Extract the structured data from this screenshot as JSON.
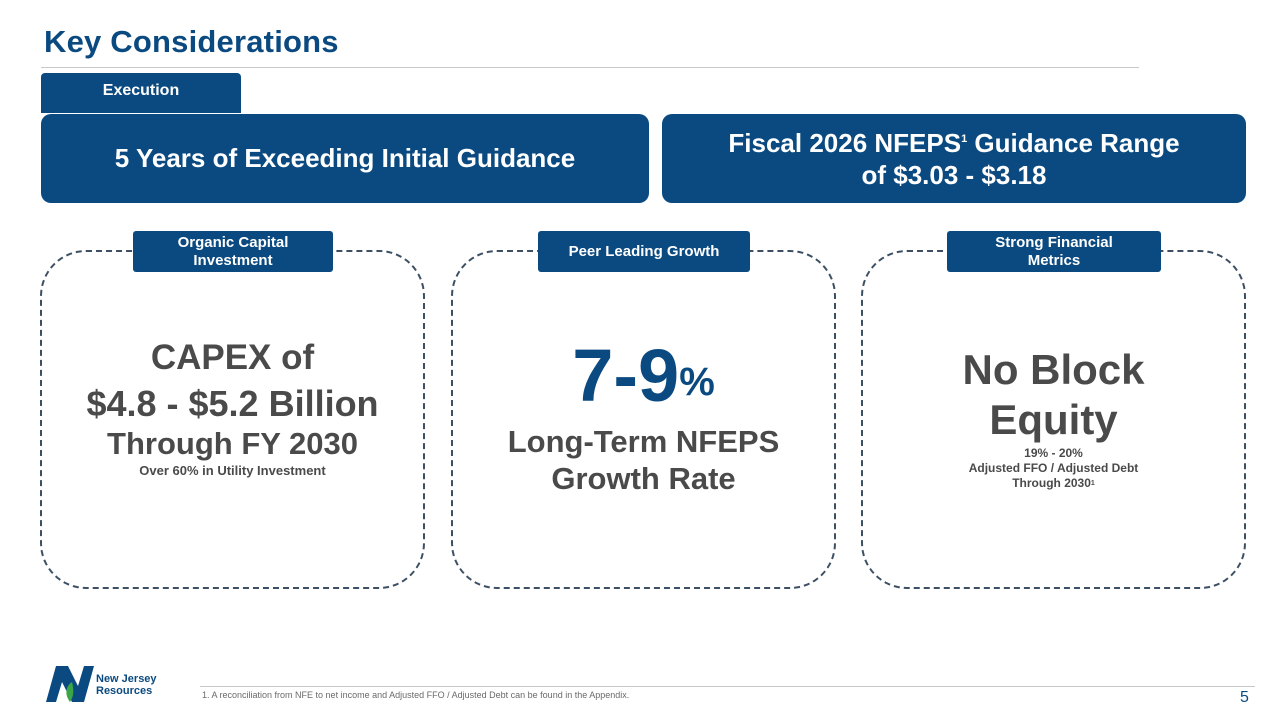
{
  "header": {
    "title": "Key Considerations"
  },
  "execution": {
    "tab_label": "Execution",
    "left_banner": "5 Years of Exceeding Initial Guidance",
    "right_banner_line1_pre": "Fiscal 2026 NFEPS",
    "right_banner_sup": "1",
    "right_banner_line1_post": " Guidance Range",
    "right_banner_line2": "of $3.03 - $3.18"
  },
  "cards": [
    {
      "tab_line1": "Organic Capital",
      "tab_line2": "Investment",
      "line1": "CAPEX of",
      "line2": "$4.8 - $5.2 Billion",
      "line3": "Through FY 2030",
      "sub": "Over 60% in Utility Investment"
    },
    {
      "tab": "Peer Leading Growth",
      "big": "7-9",
      "big_suffix": "%",
      "line1": "Long-Term NFEPS",
      "line2": "Growth Rate"
    },
    {
      "tab_line1": "Strong Financial",
      "tab_line2": "Metrics",
      "line1": "No Block",
      "line2": "Equity",
      "sub1": "19% - 20%",
      "sub2": "Adjusted FFO / Adjusted Debt",
      "sub3": "Through 2030",
      "sub3_sup": "1"
    }
  ],
  "footer": {
    "footnote": "1. A reconciliation from NFE to net income and Adjusted FFO / Adjusted Debt can be found in the Appendix.",
    "page_number": "5",
    "logo_line1": "New Jersey",
    "logo_line2": "Resources"
  },
  "colors": {
    "brand_blue": "#0b4a80",
    "text_gray": "#4a4a4a",
    "leaf_green": "#3aa648"
  }
}
